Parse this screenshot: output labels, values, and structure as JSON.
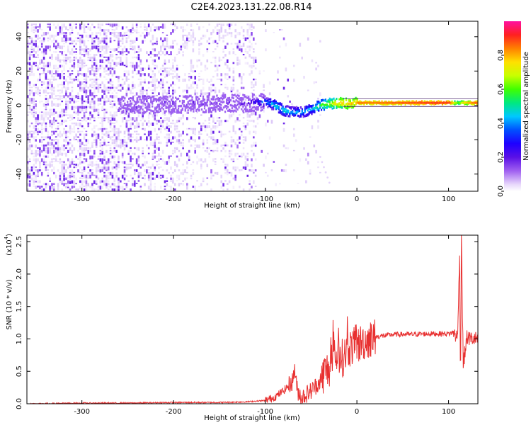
{
  "chart_data": [
    {
      "type": "heatmap",
      "title": "C2E4.2023.131.22.08.R14",
      "xlabel": "Height of straight line (km)",
      "ylabel": "Frequency (Hz)",
      "xlim": [
        -360,
        132
      ],
      "ylim": [
        -50,
        49
      ],
      "xticks": [
        -300,
        -200,
        -100,
        0,
        100
      ],
      "xtick_labels": [
        "-300",
        "-200",
        "-100",
        "0",
        "100"
      ],
      "yticks": [
        -40,
        -20,
        0,
        20,
        40
      ],
      "ytick_labels": [
        "-40",
        "-20",
        "0",
        "20",
        "40"
      ],
      "colorbar": {
        "label": "Normalized spectral amplitude",
        "range": [
          0,
          1
        ],
        "ticks": [
          0.0,
          0.2,
          0.4,
          0.6,
          0.8
        ],
        "tick_labels": [
          "0.0",
          "0.2",
          "0.4",
          "0.6",
          "0.8"
        ],
        "colormap": [
          "#ffffff",
          "#dcc8f8",
          "#9a5cf0",
          "#5a10e6",
          "#1e00ff",
          "#0050ff",
          "#00c8ff",
          "#00e880",
          "#40ff00",
          "#c8ff00",
          "#ffe000",
          "#ff8000",
          "#ff2020",
          "#ff10a0"
        ]
      },
      "noise_region_km": [
        -360,
        -110
      ],
      "frequency_trace": {
        "x_km": [
          -260,
          -200,
          -150,
          -120,
          -100,
          -90,
          -80,
          -70,
          -60,
          -50,
          -40,
          -30,
          -20,
          -10,
          0,
          20,
          50,
          80,
          100,
          110,
          115,
          132
        ],
        "freq_hz": [
          0,
          0.5,
          1,
          1.5,
          2,
          0,
          -3,
          -4,
          -4,
          -2,
          0,
          1,
          1.5,
          1,
          1.5,
          1.5,
          1.5,
          1.5,
          1.5,
          1.5,
          1.5,
          1.5
        ],
        "amplitude": [
          0.18,
          0.2,
          0.25,
          0.3,
          0.45,
          0.55,
          0.55,
          0.5,
          0.5,
          0.55,
          0.65,
          0.75,
          0.85,
          0.85,
          0.85,
          0.85,
          0.88,
          0.9,
          0.9,
          0.6,
          0.75,
          0.9
        ]
      }
    },
    {
      "type": "line",
      "xlabel": "Height of straight line (km)",
      "ylabel": "SNR (10 * v/v)",
      "y_multiplier": "(x10",
      "y_multiplier_exp": "4",
      "y_multiplier_close": ")",
      "xlim": [
        -360,
        132
      ],
      "ylim": [
        0,
        2.6
      ],
      "xticks": [
        -300,
        -200,
        -100,
        0,
        100
      ],
      "xtick_labels": [
        "-300",
        "-200",
        "-100",
        "0",
        "100"
      ],
      "yticks": [
        0.0,
        0.5,
        1.0,
        1.5,
        2.0,
        2.5
      ],
      "ytick_labels": [
        "0.0",
        "0.5",
        "1.0",
        "1.5",
        "2.0",
        "2.5"
      ],
      "series": [
        {
          "name": "SNR",
          "color": "#e83030",
          "x": [
            -360,
            -300,
            -250,
            -200,
            -150,
            -120,
            -100,
            -90,
            -80,
            -70,
            -68,
            -65,
            -60,
            -50,
            -40,
            -35,
            -30,
            -25,
            -20,
            -15,
            -10,
            0,
            10,
            20,
            40,
            60,
            80,
            100,
            105,
            110,
            112,
            113,
            114,
            116,
            120,
            125,
            132
          ],
          "y": [
            0.0,
            0.01,
            0.01,
            0.02,
            0.02,
            0.03,
            0.05,
            0.1,
            0.2,
            0.35,
            0.55,
            0.2,
            0.1,
            0.2,
            0.35,
            0.5,
            0.55,
            0.7,
            0.75,
            0.7,
            0.85,
            0.9,
            0.98,
            1.03,
            1.07,
            1.07,
            1.08,
            1.08,
            1.1,
            1.02,
            2.4,
            0.25,
            2.6,
            0.6,
            1.02,
            1.0,
            1.0
          ]
        }
      ]
    }
  ]
}
